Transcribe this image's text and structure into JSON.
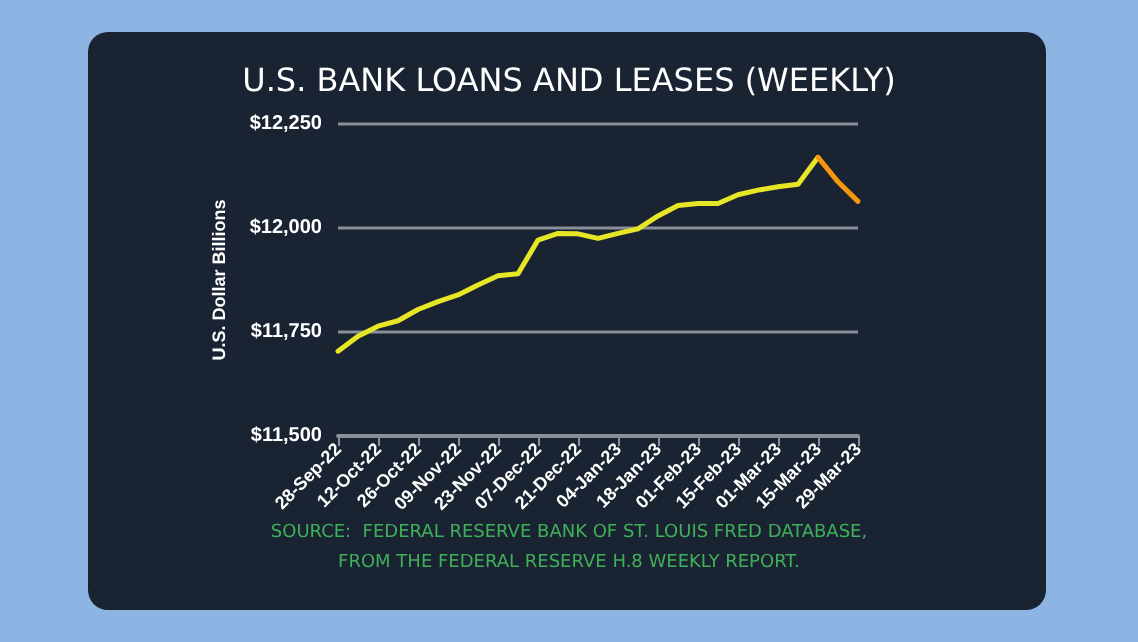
{
  "chart_data": {
    "type": "line",
    "title": "U.S. BANK LOANS AND LEASES (WEEKLY)",
    "ylabel": "U.S. Dollar Billions",
    "categories": [
      "28-Sep-22",
      null,
      "12-Oct-22",
      null,
      "26-Oct-22",
      null,
      "09-Nov-22",
      null,
      "23-Nov-22",
      null,
      "07-Dec-22",
      null,
      "21-Dec-22",
      null,
      "04-Jan-23",
      null,
      "18-Jan-23",
      null,
      "01-Feb-23",
      null,
      "15-Feb-23",
      null,
      "01-Mar-23",
      null,
      "15-Mar-23",
      null,
      "29-Mar-23"
    ],
    "series": [
      {
        "color": "#e6e626",
        "values": [
          11704,
          11740,
          11764,
          11777,
          11804,
          11823,
          11839,
          11863,
          11885,
          11890,
          11971,
          11987,
          11986,
          11975,
          11987,
          11998,
          12029,
          12054,
          12059,
          12059,
          12080,
          12091,
          12099,
          12105,
          12170,
          null,
          null
        ]
      },
      {
        "color": "#f5960c",
        "values": [
          null,
          null,
          null,
          null,
          null,
          null,
          null,
          null,
          null,
          null,
          null,
          null,
          null,
          null,
          null,
          null,
          null,
          null,
          null,
          null,
          null,
          null,
          null,
          null,
          12170,
          12111,
          12064
        ]
      }
    ],
    "ylim": [
      11500,
      12250
    ],
    "yticks": [
      {
        "value": 11500,
        "label": "$11,500"
      },
      {
        "value": 11750,
        "label": "$11,750"
      },
      {
        "value": 12000,
        "label": "$12,000"
      },
      {
        "value": 12250,
        "label": "$12,250"
      }
    ],
    "grid": "y",
    "marker": "none",
    "line_style": "solid",
    "annotations": [
      "SOURCE:  FEDERAL RESERVE BANK OF ST. LOUIS FRED DATABASE,",
      "FROM THE FEDERAL RESERVE H.8 WEEKLY REPORT."
    ]
  }
}
